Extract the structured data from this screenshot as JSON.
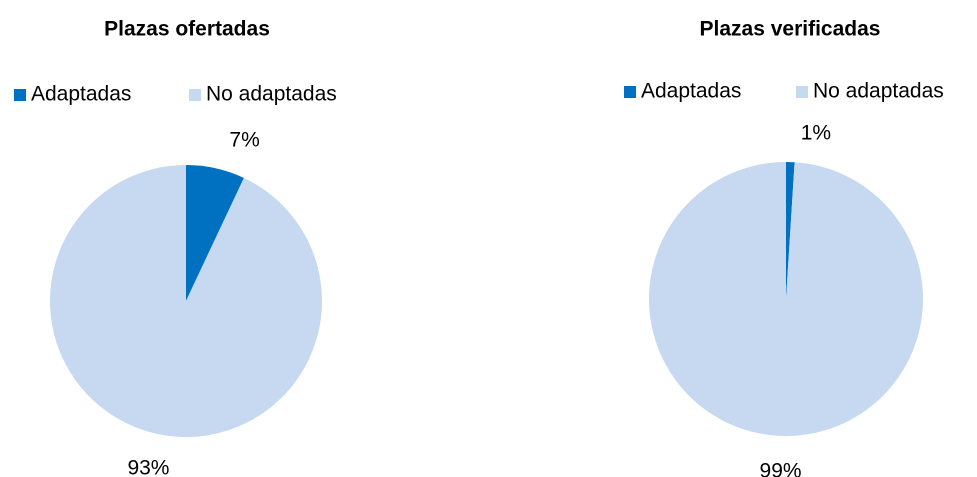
{
  "chart_data": [
    {
      "type": "pie",
      "title": "Plazas ofertadas",
      "categories": [
        "Adaptadas",
        "No adaptadas"
      ],
      "values": [
        7,
        93
      ],
      "value_labels": [
        "7%",
        "93%"
      ],
      "colors": [
        "#0070c0",
        "#c6d9f1"
      ],
      "legend": "top"
    },
    {
      "type": "pie",
      "title": "Plazas verificadas",
      "categories": [
        "Adaptadas",
        "No adaptadas"
      ],
      "values": [
        1,
        99
      ],
      "value_labels": [
        "1%",
        "99%"
      ],
      "colors": [
        "#0070c0",
        "#c6d9f1"
      ],
      "legend": "top"
    }
  ]
}
